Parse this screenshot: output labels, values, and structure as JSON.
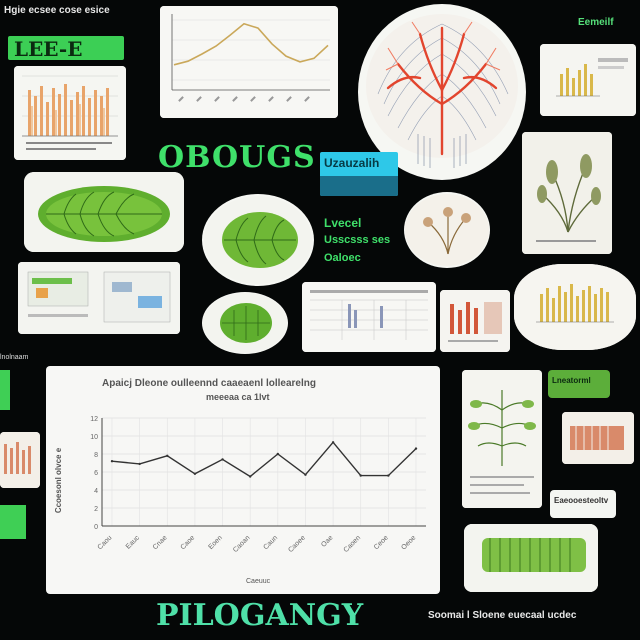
{
  "header": {
    "top_left": "Hgie ecsee cose esice",
    "top_right": "Eemeilf",
    "top_left_banner": "LEE-E",
    "center_word": "OBOUGS",
    "cyan_banner": "Uzauzalih",
    "side_lines": [
      "Lvecel",
      "Usscsss ses",
      "Oaloec"
    ]
  },
  "main_chart": {
    "title_line1": "Apaicj Dleone oulleennd caaeaenl lollearelng",
    "title_line2": "meeeaa ca 1lvt",
    "xlabel": "Caeuuc",
    "ylabel": "Ccoesonl olvce e"
  },
  "small_labels": {
    "left_mid": "lnolnaam",
    "right_mid": "Lneatorml",
    "right_low": "Eaeooesteoltv"
  },
  "footer": {
    "title": "PILOGANGY",
    "caption": "Soomai l Sloene euecaal ucdec"
  },
  "chart_data": {
    "type": "line",
    "title": "Apaicj Dleone oulleennd caaeaenl lollearelng meeeaa ca 1lvt",
    "xlabel": "Caeuuc",
    "ylabel": "Ccoesonl olvce e",
    "categories": [
      "Caou",
      "Eauc",
      "Cnae",
      "Caoe",
      "Eoen",
      "Caoan",
      "Caun",
      "Caoee",
      "Oae",
      "Caoen",
      "Ceoe",
      "Oeoe"
    ],
    "values": [
      7.2,
      6.9,
      7.8,
      5.8,
      7.4,
      5.5,
      8.0,
      5.7,
      9.3,
      5.6,
      5.6,
      8.6
    ],
    "ylim": [
      0,
      12
    ],
    "grid": true,
    "line_color": "#333333"
  },
  "top_chart": {
    "type": "line",
    "values": [
      3.5,
      4.0,
      5.0,
      6.1,
      7.6,
      9.2,
      8.6,
      6.4,
      4.7,
      3.9,
      4.4,
      6.2
    ],
    "line_color": "#caa85a"
  },
  "colors": {
    "background": "#050707",
    "accent_green": "#3fe06a",
    "leaf_green": "#5fae2e",
    "coral": "#e8553e",
    "orange_bar": "#e8a46a",
    "gold_bar": "#d9b84a"
  }
}
